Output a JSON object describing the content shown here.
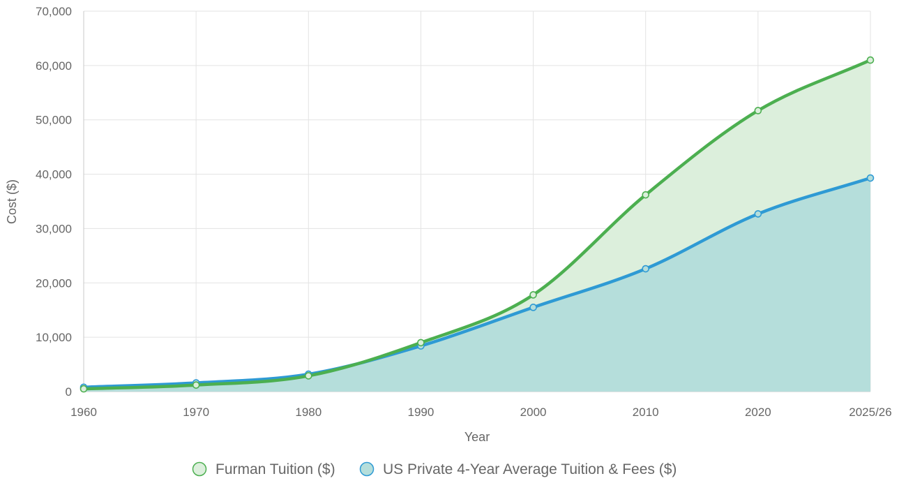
{
  "chart_data": {
    "type": "area",
    "xlabel": "Year",
    "ylabel": "Cost ($)",
    "categories": [
      "1960",
      "1970",
      "1980",
      "1990",
      "2000",
      "2010",
      "2020",
      "2025/26"
    ],
    "ylim": [
      0,
      70000
    ],
    "y_ticks": [
      0,
      10000,
      20000,
      30000,
      40000,
      50000,
      60000,
      70000
    ],
    "y_tick_labels": [
      "0",
      "10,000",
      "20,000",
      "30,000",
      "40,000",
      "50,000",
      "60,000",
      "70,000"
    ],
    "grid": true,
    "legend_position": "bottom",
    "series": [
      {
        "name": "Furman Tuition ($)",
        "values": [
          500,
          1200,
          2900,
          9000,
          17800,
          36200,
          51700,
          61000
        ],
        "line_color": "#4caf50",
        "fill_color": "#dcefdc",
        "fill": "to-series-2"
      },
      {
        "name": "US Private 4-Year Average Tuition & Fees ($)",
        "values": [
          800,
          1600,
          3200,
          8400,
          15500,
          22600,
          32700,
          39300
        ],
        "line_color": "#2e9ad4",
        "fill_color": "#b5dedb",
        "fill": "to-origin"
      }
    ]
  }
}
